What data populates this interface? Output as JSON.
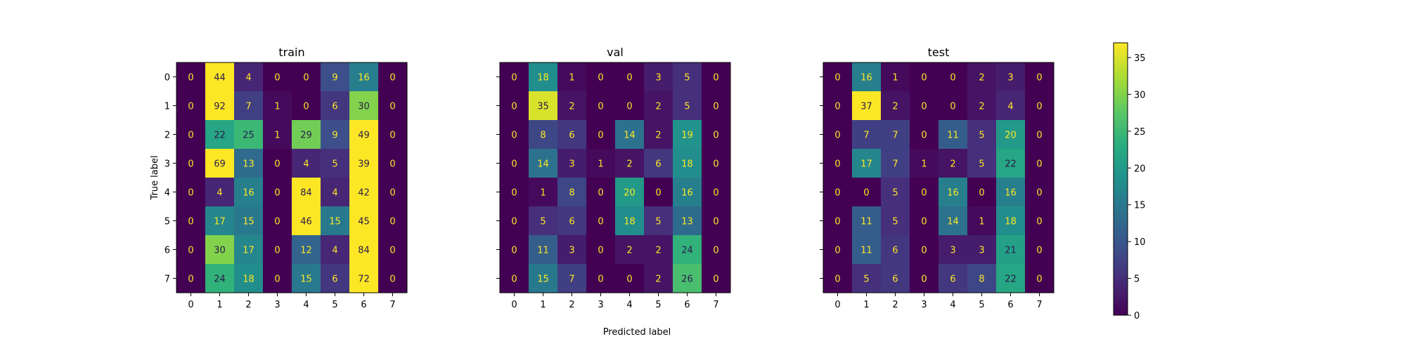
{
  "chart_data": {
    "type": "heatmap",
    "xlabel": "Predicted label",
    "ylabel": "True label",
    "class_labels": [
      "0",
      "1",
      "2",
      "3",
      "4",
      "5",
      "6",
      "7"
    ],
    "colormap": "viridis",
    "colorbar": {
      "min": 0,
      "max": 37,
      "ticks": [
        "0",
        "5",
        "10",
        "15",
        "20",
        "25",
        "30",
        "35"
      ]
    },
    "panels": [
      {
        "title": "train",
        "matrix": [
          [
            0,
            44,
            4,
            0,
            0,
            9,
            16,
            0
          ],
          [
            0,
            92,
            7,
            1,
            0,
            6,
            30,
            0
          ],
          [
            0,
            22,
            25,
            1,
            29,
            9,
            49,
            0
          ],
          [
            0,
            69,
            13,
            0,
            4,
            5,
            39,
            0
          ],
          [
            0,
            4,
            16,
            0,
            84,
            4,
            42,
            0
          ],
          [
            0,
            17,
            15,
            0,
            46,
            15,
            45,
            0
          ],
          [
            0,
            30,
            17,
            0,
            12,
            4,
            84,
            0
          ],
          [
            0,
            24,
            18,
            0,
            15,
            6,
            72,
            0
          ]
        ]
      },
      {
        "title": "val",
        "matrix": [
          [
            0,
            18,
            1,
            0,
            0,
            3,
            5,
            0
          ],
          [
            0,
            35,
            2,
            0,
            0,
            2,
            5,
            0
          ],
          [
            0,
            8,
            6,
            0,
            14,
            2,
            19,
            0
          ],
          [
            0,
            14,
            3,
            1,
            2,
            6,
            18,
            0
          ],
          [
            0,
            1,
            8,
            0,
            20,
            0,
            16,
            0
          ],
          [
            0,
            5,
            6,
            0,
            18,
            5,
            13,
            0
          ],
          [
            0,
            11,
            3,
            0,
            2,
            2,
            24,
            0
          ],
          [
            0,
            15,
            7,
            0,
            0,
            2,
            26,
            0
          ]
        ]
      },
      {
        "title": "test",
        "matrix": [
          [
            0,
            16,
            1,
            0,
            0,
            2,
            3,
            0
          ],
          [
            0,
            37,
            2,
            0,
            0,
            2,
            4,
            0
          ],
          [
            0,
            7,
            7,
            0,
            11,
            5,
            20,
            0
          ],
          [
            0,
            17,
            7,
            1,
            2,
            5,
            22,
            0
          ],
          [
            0,
            0,
            5,
            0,
            16,
            0,
            16,
            0
          ],
          [
            0,
            11,
            5,
            0,
            14,
            1,
            18,
            0
          ],
          [
            0,
            11,
            6,
            0,
            3,
            3,
            21,
            0
          ],
          [
            0,
            5,
            6,
            0,
            6,
            8,
            22,
            0
          ]
        ]
      }
    ]
  }
}
